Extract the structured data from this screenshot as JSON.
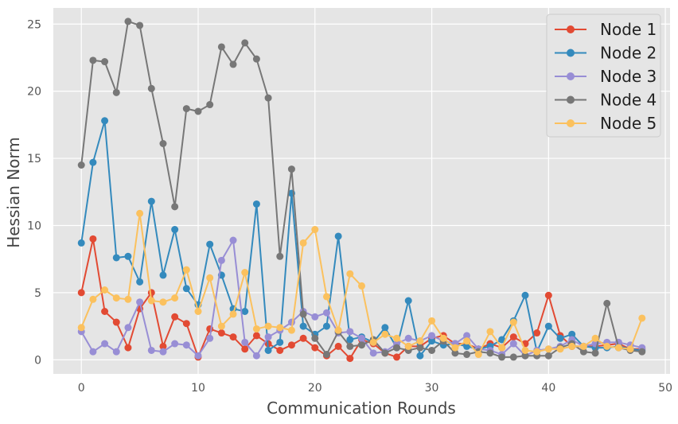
{
  "chart_data": {
    "type": "line",
    "title": "",
    "xlabel": "Communication Rounds",
    "ylabel": "Hessian Norm",
    "xlim": [
      -2.4,
      50.4
    ],
    "ylim": [
      -1.05,
      26.2
    ],
    "xticks": [
      0,
      10,
      20,
      30,
      40,
      50
    ],
    "yticks": [
      0,
      5,
      10,
      15,
      20,
      25
    ],
    "grid": true,
    "legend_position": "top-right",
    "x": [
      0,
      1,
      2,
      3,
      4,
      5,
      6,
      7,
      8,
      9,
      10,
      11,
      12,
      13,
      14,
      15,
      16,
      17,
      18,
      19,
      20,
      21,
      22,
      23,
      24,
      25,
      26,
      27,
      28,
      29,
      30,
      31,
      32,
      33,
      34,
      35,
      36,
      37,
      38,
      39,
      40,
      41,
      42,
      43,
      44,
      45,
      46,
      47,
      48
    ],
    "series": [
      {
        "name": "Node 1",
        "color": "#E24A33",
        "values": [
          5.0,
          9.0,
          3.6,
          2.8,
          0.9,
          3.8,
          5.0,
          1.0,
          3.2,
          2.7,
          0.2,
          2.3,
          2.0,
          1.7,
          0.8,
          1.8,
          1.2,
          0.7,
          1.1,
          1.6,
          0.9,
          0.3,
          1.0,
          0.1,
          1.5,
          1.2,
          0.5,
          0.2,
          1.0,
          1.0,
          1.6,
          1.8,
          1.2,
          1.2,
          0.8,
          1.2,
          0.9,
          1.7,
          1.2,
          2.0,
          4.8,
          1.8,
          1.0,
          1.0,
          1.0,
          1.1,
          1.2,
          0.8,
          0.8
        ]
      },
      {
        "name": "Node 2",
        "color": "#348ABD",
        "values": [
          8.7,
          14.7,
          17.8,
          7.6,
          7.7,
          5.8,
          11.8,
          6.3,
          9.7,
          5.3,
          4.1,
          8.6,
          6.3,
          3.8,
          3.6,
          11.6,
          0.7,
          1.3,
          12.4,
          2.5,
          1.9,
          2.5,
          9.2,
          1.5,
          1.7,
          1.3,
          2.4,
          0.9,
          4.4,
          0.3,
          1.4,
          1.1,
          1.2,
          1.0,
          0.8,
          1.0,
          1.5,
          2.9,
          4.8,
          0.6,
          2.5,
          1.6,
          1.9,
          1.0,
          0.9,
          0.9,
          1.0,
          0.8,
          0.7
        ]
      },
      {
        "name": "Node 3",
        "color": "#988ED5",
        "values": [
          2.1,
          0.6,
          1.2,
          0.6,
          2.4,
          4.3,
          0.7,
          0.6,
          1.2,
          1.1,
          0.3,
          1.6,
          7.4,
          8.9,
          1.3,
          0.3,
          1.7,
          2.2,
          2.8,
          3.6,
          3.2,
          3.5,
          2.0,
          2.1,
          1.6,
          0.5,
          0.6,
          1.2,
          1.6,
          1.4,
          1.8,
          1.4,
          1.2,
          1.8,
          0.8,
          0.7,
          0.4,
          1.2,
          0.3,
          0.7,
          0.8,
          1.0,
          1.5,
          1.0,
          1.2,
          1.3,
          1.3,
          1.1,
          0.9
        ]
      },
      {
        "name": "Node 4",
        "color": "#777777",
        "values": [
          14.5,
          22.3,
          22.2,
          19.9,
          25.2,
          24.9,
          20.2,
          16.1,
          11.4,
          18.7,
          18.5,
          19.0,
          23.3,
          22.0,
          23.6,
          22.4,
          19.5,
          7.7,
          14.2,
          3.4,
          1.6,
          0.4,
          2.1,
          1.0,
          1.1,
          1.5,
          0.5,
          0.9,
          0.7,
          0.9,
          0.7,
          1.4,
          0.5,
          0.4,
          0.6,
          0.5,
          0.2,
          0.2,
          0.3,
          0.3,
          0.3,
          0.9,
          1.2,
          0.6,
          0.5,
          4.2,
          0.9,
          0.7,
          0.6
        ]
      },
      {
        "name": "Node 5",
        "color": "#FBC15E",
        "values": [
          2.4,
          4.5,
          5.2,
          4.6,
          4.5,
          10.9,
          4.4,
          4.3,
          4.6,
          6.7,
          3.6,
          6.1,
          2.5,
          3.4,
          6.5,
          2.3,
          2.5,
          2.4,
          2.2,
          8.7,
          9.7,
          4.7,
          2.2,
          6.4,
          5.5,
          1.3,
          1.9,
          1.6,
          1.0,
          1.4,
          2.9,
          1.6,
          0.9,
          1.4,
          0.4,
          2.1,
          0.9,
          2.8,
          0.7,
          0.6,
          0.8,
          0.8,
          1.0,
          1.0,
          1.6,
          1.0,
          0.9,
          0.8,
          3.1
        ]
      }
    ]
  }
}
